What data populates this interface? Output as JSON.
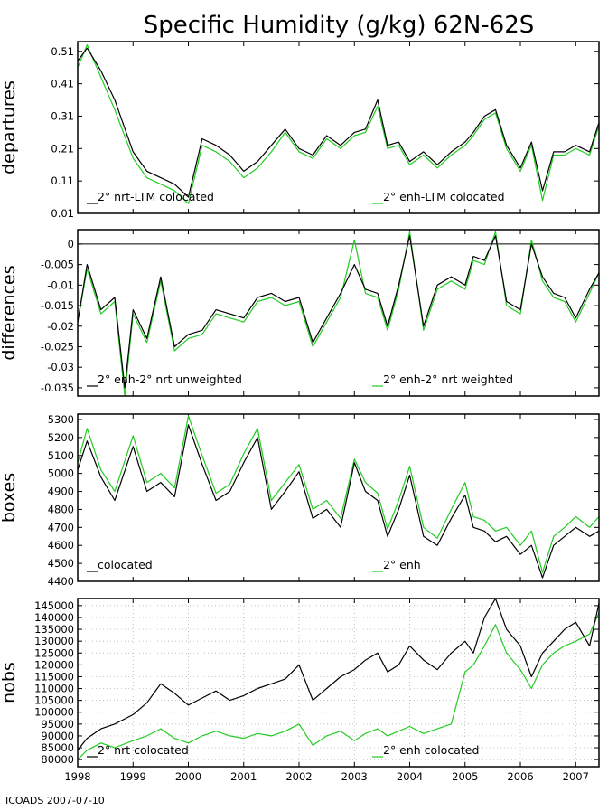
{
  "title": "Specific Humidity (g/kg) 62N-62S",
  "footer": "ICOADS 2007-07-10",
  "colors": {
    "series_a": "#000000",
    "series_b": "#22cc22",
    "zero_line": "#000000"
  },
  "x_axis": {
    "range": [
      1998.0,
      2007.42
    ],
    "ticks": [
      1998,
      1999,
      2000,
      2001,
      2002,
      2003,
      2004,
      2005,
      2006,
      2007
    ],
    "tick_labels": [
      "1998",
      "1999",
      "2000",
      "2001",
      "2002",
      "2003",
      "2004",
      "2005",
      "2006",
      "2007"
    ]
  },
  "chart_data": [
    {
      "type": "line",
      "ylabel": "departures",
      "ylim": [
        0.01,
        0.54
      ],
      "yticks": [
        0.01,
        0.11,
        0.21,
        0.31,
        0.41,
        0.51
      ],
      "ytick_labels": [
        "0.01",
        "0.11",
        "0.21",
        "0.31",
        "0.41",
        "0.51"
      ],
      "grid": false,
      "zero_line": false,
      "series": [
        {
          "name": "2° nrt-LTM colocated",
          "x": [
            1998.0,
            1998.17,
            1998.42,
            1998.67,
            1999.0,
            1999.25,
            1999.5,
            1999.75,
            2000.0,
            2000.25,
            2000.5,
            2000.75,
            2001.0,
            2001.25,
            2001.5,
            2001.75,
            2002.0,
            2002.25,
            2002.5,
            2002.75,
            2003.0,
            2003.2,
            2003.42,
            2003.6,
            2003.8,
            2004.0,
            2004.25,
            2004.5,
            2004.75,
            2005.0,
            2005.15,
            2005.35,
            2005.55,
            2005.75,
            2006.0,
            2006.2,
            2006.4,
            2006.6,
            2006.8,
            2007.0,
            2007.25,
            2007.42
          ],
          "y": [
            0.48,
            0.52,
            0.45,
            0.36,
            0.2,
            0.14,
            0.12,
            0.1,
            0.06,
            0.24,
            0.22,
            0.19,
            0.14,
            0.17,
            0.22,
            0.27,
            0.21,
            0.19,
            0.25,
            0.22,
            0.26,
            0.27,
            0.36,
            0.22,
            0.23,
            0.17,
            0.2,
            0.16,
            0.2,
            0.23,
            0.26,
            0.31,
            0.33,
            0.22,
            0.15,
            0.23,
            0.08,
            0.2,
            0.2,
            0.22,
            0.2,
            0.29
          ]
        },
        {
          "name": "2° enh-LTM colocated",
          "x": [
            1998.0,
            1998.17,
            1998.42,
            1998.67,
            1999.0,
            1999.25,
            1999.5,
            1999.75,
            2000.0,
            2000.25,
            2000.5,
            2000.75,
            2001.0,
            2001.25,
            2001.5,
            2001.75,
            2002.0,
            2002.25,
            2002.5,
            2002.75,
            2003.0,
            2003.2,
            2003.42,
            2003.6,
            2003.8,
            2004.0,
            2004.25,
            2004.5,
            2004.75,
            2005.0,
            2005.15,
            2005.35,
            2005.55,
            2005.75,
            2006.0,
            2006.2,
            2006.4,
            2006.6,
            2006.8,
            2007.0,
            2007.25,
            2007.42
          ],
          "y": [
            0.46,
            0.53,
            0.43,
            0.33,
            0.18,
            0.12,
            0.1,
            0.08,
            0.04,
            0.22,
            0.2,
            0.17,
            0.12,
            0.15,
            0.2,
            0.26,
            0.2,
            0.18,
            0.24,
            0.21,
            0.25,
            0.26,
            0.34,
            0.21,
            0.22,
            0.16,
            0.19,
            0.15,
            0.19,
            0.22,
            0.25,
            0.3,
            0.32,
            0.21,
            0.14,
            0.22,
            0.05,
            0.19,
            0.19,
            0.21,
            0.19,
            0.28
          ]
        }
      ]
    },
    {
      "type": "line",
      "ylabel": "differences",
      "ylim": [
        -0.037,
        0.0035
      ],
      "yticks": [
        0,
        -0.005,
        -0.01,
        -0.015,
        -0.02,
        -0.025,
        -0.03,
        -0.035
      ],
      "ytick_labels": [
        "0",
        "-0.005",
        "-0.01",
        "-0.015",
        "-0.02",
        "-0.025",
        "-0.03",
        "-0.035"
      ],
      "grid": false,
      "zero_line": true,
      "series": [
        {
          "name": "2° enh-2° nrt unweighted",
          "x": [
            1998.0,
            1998.17,
            1998.42,
            1998.67,
            1998.85,
            1999.0,
            1999.25,
            1999.5,
            1999.75,
            2000.0,
            2000.25,
            2000.5,
            2000.75,
            2001.0,
            2001.25,
            2001.5,
            2001.75,
            2002.0,
            2002.25,
            2002.5,
            2002.75,
            2003.0,
            2003.2,
            2003.42,
            2003.6,
            2003.8,
            2004.0,
            2004.25,
            2004.5,
            2004.75,
            2005.0,
            2005.15,
            2005.35,
            2005.55,
            2005.75,
            2006.0,
            2006.2,
            2006.4,
            2006.6,
            2006.8,
            2007.0,
            2007.25,
            2007.42
          ],
          "y": [
            -0.019,
            -0.005,
            -0.016,
            -0.013,
            -0.035,
            -0.016,
            -0.023,
            -0.008,
            -0.025,
            -0.022,
            -0.021,
            -0.016,
            -0.017,
            -0.018,
            -0.013,
            -0.012,
            -0.014,
            -0.013,
            -0.024,
            -0.018,
            -0.012,
            -0.005,
            -0.011,
            -0.012,
            -0.02,
            -0.01,
            0.002,
            -0.02,
            -0.01,
            -0.008,
            -0.01,
            -0.003,
            -0.004,
            0.002,
            -0.014,
            -0.016,
            0.0,
            -0.008,
            -0.012,
            -0.013,
            -0.018,
            -0.011,
            -0.007
          ]
        },
        {
          "name": "2° enh-2° nrt weighted",
          "x": [
            1998.0,
            1998.17,
            1998.42,
            1998.67,
            1998.85,
            1999.0,
            1999.25,
            1999.5,
            1999.75,
            2000.0,
            2000.25,
            2000.5,
            2000.75,
            2001.0,
            2001.25,
            2001.5,
            2001.75,
            2002.0,
            2002.25,
            2002.5,
            2002.75,
            2003.0,
            2003.2,
            2003.42,
            2003.6,
            2003.8,
            2004.0,
            2004.25,
            2004.5,
            2004.75,
            2005.0,
            2005.15,
            2005.35,
            2005.55,
            2005.75,
            2006.0,
            2006.2,
            2006.4,
            2006.6,
            2006.8,
            2007.0,
            2007.25,
            2007.42
          ],
          "y": [
            -0.019,
            -0.006,
            -0.017,
            -0.014,
            -0.037,
            -0.017,
            -0.024,
            -0.009,
            -0.026,
            -0.023,
            -0.022,
            -0.017,
            -0.018,
            -0.019,
            -0.014,
            -0.013,
            -0.015,
            -0.014,
            -0.025,
            -0.019,
            -0.013,
            0.001,
            -0.012,
            -0.013,
            -0.021,
            -0.011,
            0.003,
            -0.021,
            -0.011,
            -0.009,
            -0.011,
            -0.004,
            -0.005,
            0.003,
            -0.015,
            -0.017,
            0.001,
            -0.009,
            -0.013,
            -0.014,
            -0.019,
            -0.012,
            -0.007
          ]
        }
      ]
    },
    {
      "type": "line",
      "ylabel": "boxes",
      "ylim": [
        4400,
        5330
      ],
      "yticks": [
        4400,
        4500,
        4600,
        4700,
        4800,
        4900,
        5000,
        5100,
        5200,
        5300
      ],
      "ytick_labels": [
        "4400",
        "4500",
        "4600",
        "4700",
        "4800",
        "4900",
        "5000",
        "5100",
        "5200",
        "5300"
      ],
      "grid": false,
      "zero_line": false,
      "series": [
        {
          "name": "colocated",
          "x": [
            1998.0,
            1998.17,
            1998.42,
            1998.67,
            1999.0,
            1999.25,
            1999.5,
            1999.75,
            2000.0,
            2000.25,
            2000.5,
            2000.75,
            2001.0,
            2001.25,
            2001.5,
            2001.75,
            2002.0,
            2002.25,
            2002.5,
            2002.75,
            2003.0,
            2003.2,
            2003.42,
            2003.6,
            2003.8,
            2004.0,
            2004.25,
            2004.5,
            2004.75,
            2005.0,
            2005.15,
            2005.35,
            2005.55,
            2005.75,
            2006.0,
            2006.2,
            2006.4,
            2006.6,
            2006.8,
            2007.0,
            2007.25,
            2007.42
          ],
          "y": [
            5020,
            5180,
            4980,
            4850,
            5150,
            4900,
            4950,
            4870,
            5270,
            5050,
            4850,
            4900,
            5060,
            5200,
            4800,
            4900,
            5010,
            4750,
            4800,
            4700,
            5060,
            4900,
            4850,
            4650,
            4800,
            4990,
            4650,
            4600,
            4750,
            4880,
            4700,
            4680,
            4620,
            4650,
            4550,
            4600,
            4420,
            4600,
            4650,
            4700,
            4650,
            4680
          ]
        },
        {
          "name": "2° enh",
          "x": [
            1998.0,
            1998.17,
            1998.42,
            1998.67,
            1999.0,
            1999.25,
            1999.5,
            1999.75,
            2000.0,
            2000.25,
            2000.5,
            2000.75,
            2001.0,
            2001.25,
            2001.5,
            2001.75,
            2002.0,
            2002.25,
            2002.5,
            2002.75,
            2003.0,
            2003.2,
            2003.42,
            2003.6,
            2003.8,
            2004.0,
            2004.25,
            2004.5,
            2004.75,
            2005.0,
            2005.15,
            2005.35,
            2005.55,
            2005.75,
            2006.0,
            2006.2,
            2006.4,
            2006.6,
            2006.8,
            2007.0,
            2007.25,
            2007.42
          ],
          "y": [
            5060,
            5250,
            5020,
            4900,
            5210,
            4950,
            5000,
            4920,
            5320,
            5100,
            4890,
            4940,
            5110,
            5250,
            4850,
            4950,
            5050,
            4800,
            4850,
            4750,
            5080,
            4950,
            4890,
            4690,
            4850,
            5040,
            4700,
            4640,
            4800,
            4950,
            4760,
            4740,
            4680,
            4700,
            4600,
            4680,
            4450,
            4650,
            4700,
            4760,
            4700,
            4760
          ]
        }
      ]
    },
    {
      "type": "line",
      "ylabel": "nobs",
      "ylim": [
        77000,
        148000
      ],
      "yticks": [
        80000,
        85000,
        90000,
        95000,
        100000,
        105000,
        110000,
        115000,
        120000,
        125000,
        130000,
        135000,
        140000,
        145000
      ],
      "ytick_labels": [
        "80000",
        "85000",
        "90000",
        "95000",
        "100000",
        "105000",
        "110000",
        "115000",
        "120000",
        "125000",
        "130000",
        "135000",
        "140000",
        "145000"
      ],
      "grid": true,
      "zero_line": false,
      "series": [
        {
          "name": "2° nrt colocated",
          "x": [
            1998.0,
            1998.17,
            1998.42,
            1998.67,
            1999.0,
            1999.25,
            1999.5,
            1999.75,
            2000.0,
            2000.25,
            2000.5,
            2000.75,
            2001.0,
            2001.25,
            2001.5,
            2001.75,
            2002.0,
            2002.25,
            2002.5,
            2002.75,
            2003.0,
            2003.2,
            2003.42,
            2003.6,
            2003.8,
            2004.0,
            2004.25,
            2004.5,
            2004.75,
            2005.0,
            2005.15,
            2005.35,
            2005.55,
            2005.75,
            2006.0,
            2006.2,
            2006.4,
            2006.6,
            2006.8,
            2007.0,
            2007.25,
            2007.42
          ],
          "y": [
            84000,
            89000,
            93000,
            95000,
            99000,
            104000,
            112000,
            108000,
            103000,
            106000,
            109000,
            105000,
            107000,
            110000,
            112000,
            114000,
            120000,
            105000,
            110000,
            115000,
            118000,
            122000,
            125000,
            117000,
            120000,
            128000,
            122000,
            118000,
            125000,
            130000,
            125000,
            140000,
            148000,
            135000,
            128000,
            115000,
            125000,
            130000,
            135000,
            138000,
            128000,
            146000
          ]
        },
        {
          "name": "2° enh colocated",
          "x": [
            1998.0,
            1998.17,
            1998.42,
            1998.67,
            1999.0,
            1999.25,
            1999.5,
            1999.75,
            2000.0,
            2000.25,
            2000.5,
            2000.75,
            2001.0,
            2001.25,
            2001.5,
            2001.75,
            2002.0,
            2002.25,
            2002.5,
            2002.75,
            2003.0,
            2003.2,
            2003.42,
            2003.6,
            2003.8,
            2004.0,
            2004.25,
            2004.5,
            2004.75,
            2005.0,
            2005.15,
            2005.35,
            2005.55,
            2005.75,
            2006.0,
            2006.2,
            2006.4,
            2006.6,
            2006.8,
            2007.0,
            2007.25,
            2007.42
          ],
          "y": [
            80000,
            84000,
            87000,
            85000,
            88000,
            90000,
            93000,
            89000,
            87000,
            90000,
            92000,
            90000,
            89000,
            91000,
            90000,
            92000,
            95000,
            86000,
            90000,
            92000,
            88000,
            91000,
            93000,
            90000,
            92000,
            94000,
            91000,
            93000,
            95000,
            117000,
            120000,
            128000,
            137000,
            125000,
            118000,
            110000,
            120000,
            125000,
            128000,
            130000,
            133000,
            142000
          ]
        }
      ]
    }
  ]
}
